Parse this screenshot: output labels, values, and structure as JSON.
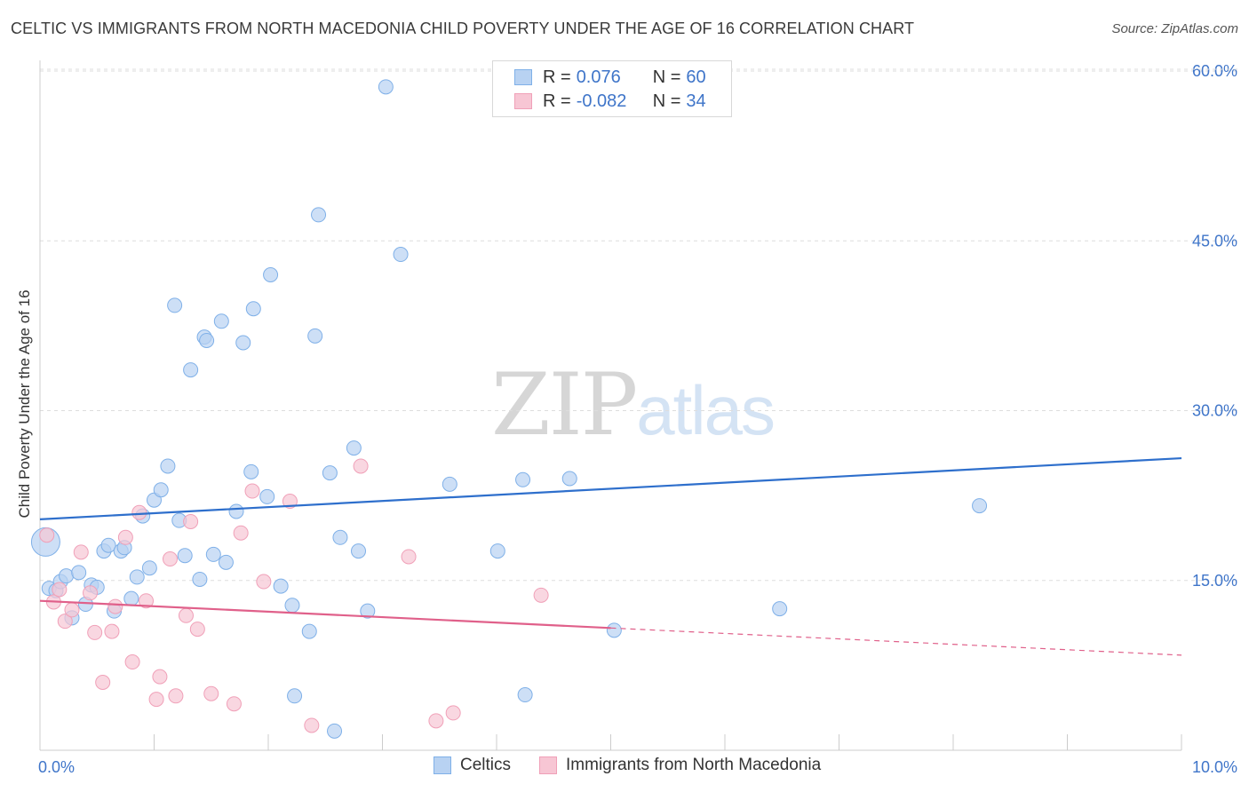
{
  "header": {
    "title": "CELTIC VS IMMIGRANTS FROM NORTH MACEDONIA CHILD POVERTY UNDER THE AGE OF 16 CORRELATION CHART",
    "source": "Source: ZipAtlas.com"
  },
  "watermark": {
    "zip": "ZIP",
    "atlas": "atlas"
  },
  "legend_top": {
    "rows": [
      {
        "r_label": "R =",
        "r_value": "0.076",
        "n_label": "N =",
        "n_value": "60",
        "color": "#7fb0e8"
      },
      {
        "r_label": "R =",
        "r_value": "-0.082",
        "n_label": "N =",
        "n_value": "34",
        "color": "#f0a0b8"
      }
    ]
  },
  "legend_bottom": {
    "items": [
      {
        "label": "Celtics",
        "color": "#7fb0e8"
      },
      {
        "label": "Immigrants from North Macedonia",
        "color": "#f0a0b8"
      }
    ]
  },
  "colors": {
    "celtics_fill": "#b8d2f2",
    "celtics_stroke": "#7fb0e8",
    "celtics_line": "#2e6fcc",
    "macedonia_fill": "#f7c6d4",
    "macedonia_stroke": "#f0a0b8",
    "macedonia_line": "#e0608a",
    "tick_text": "#3f75c9",
    "grid": "#dddddd"
  },
  "chart_data": {
    "type": "scatter",
    "title": "CELTIC VS IMMIGRANTS FROM NORTH MACEDONIA CHILD POVERTY UNDER THE AGE OF 16 CORRELATION CHART",
    "xlabel": "",
    "ylabel": "Child Poverty Under the Age of 16",
    "xlim": [
      0,
      10
    ],
    "ylim": [
      0,
      61
    ],
    "x_ticks": [
      0,
      10
    ],
    "x_tick_labels": [
      "0.0%",
      "10.0%"
    ],
    "y_ticks": [
      15,
      30,
      45,
      60
    ],
    "y_tick_labels": [
      "15.0%",
      "30.0%",
      "45.0%",
      "60.0%"
    ],
    "grid": "horizontal dashed",
    "legend": "bottom",
    "series": [
      {
        "name": "Celtics",
        "trend": {
          "x": [
            0,
            10
          ],
          "y": [
            20.4,
            25.8
          ]
        },
        "points": [
          {
            "x": 0.05,
            "y": 18.4,
            "big": true
          },
          {
            "x": 0.08,
            "y": 14.3
          },
          {
            "x": 0.14,
            "y": 14.1
          },
          {
            "x": 0.18,
            "y": 14.9
          },
          {
            "x": 0.23,
            "y": 15.4
          },
          {
            "x": 0.28,
            "y": 11.7
          },
          {
            "x": 0.34,
            "y": 15.7
          },
          {
            "x": 0.4,
            "y": 12.9
          },
          {
            "x": 0.45,
            "y": 14.6
          },
          {
            "x": 0.5,
            "y": 14.4
          },
          {
            "x": 0.56,
            "y": 17.6
          },
          {
            "x": 0.6,
            "y": 18.1
          },
          {
            "x": 0.65,
            "y": 12.3
          },
          {
            "x": 0.71,
            "y": 17.6
          },
          {
            "x": 0.74,
            "y": 17.9
          },
          {
            "x": 0.8,
            "y": 13.4
          },
          {
            "x": 0.85,
            "y": 15.3
          },
          {
            "x": 0.9,
            "y": 20.7
          },
          {
            "x": 0.96,
            "y": 16.1
          },
          {
            "x": 1.0,
            "y": 22.1
          },
          {
            "x": 1.06,
            "y": 23.0
          },
          {
            "x": 1.12,
            "y": 25.1
          },
          {
            "x": 1.18,
            "y": 39.3
          },
          {
            "x": 1.22,
            "y": 20.3
          },
          {
            "x": 1.27,
            "y": 17.2
          },
          {
            "x": 1.32,
            "y": 33.6
          },
          {
            "x": 1.4,
            "y": 15.1
          },
          {
            "x": 1.44,
            "y": 36.5
          },
          {
            "x": 1.46,
            "y": 36.2
          },
          {
            "x": 1.52,
            "y": 17.3
          },
          {
            "x": 1.59,
            "y": 37.9
          },
          {
            "x": 1.63,
            "y": 16.6
          },
          {
            "x": 1.72,
            "y": 21.1
          },
          {
            "x": 1.78,
            "y": 36.0
          },
          {
            "x": 1.85,
            "y": 24.6
          },
          {
            "x": 1.87,
            "y": 39.0
          },
          {
            "x": 2.02,
            "y": 42.0
          },
          {
            "x": 1.99,
            "y": 22.4
          },
          {
            "x": 2.11,
            "y": 14.5
          },
          {
            "x": 2.21,
            "y": 12.8
          },
          {
            "x": 2.23,
            "y": 4.8
          },
          {
            "x": 2.36,
            "y": 10.5
          },
          {
            "x": 2.41,
            "y": 36.6
          },
          {
            "x": 2.44,
            "y": 47.3
          },
          {
            "x": 2.54,
            "y": 24.5
          },
          {
            "x": 2.58,
            "y": 1.7
          },
          {
            "x": 2.63,
            "y": 18.8
          },
          {
            "x": 2.75,
            "y": 26.7
          },
          {
            "x": 2.79,
            "y": 17.6
          },
          {
            "x": 2.87,
            "y": 12.3
          },
          {
            "x": 3.03,
            "y": 58.6
          },
          {
            "x": 3.16,
            "y": 43.8
          },
          {
            "x": 3.59,
            "y": 23.5
          },
          {
            "x": 4.01,
            "y": 17.6
          },
          {
            "x": 4.23,
            "y": 23.9
          },
          {
            "x": 4.25,
            "y": 4.9
          },
          {
            "x": 4.64,
            "y": 24.0
          },
          {
            "x": 5.03,
            "y": 10.6
          },
          {
            "x": 6.48,
            "y": 12.5
          },
          {
            "x": 8.23,
            "y": 21.6
          }
        ]
      },
      {
        "name": "Immigrants from North Macedonia",
        "trend": {
          "x": [
            0,
            5
          ],
          "y": [
            13.2,
            10.8
          ]
        },
        "trend_extension": {
          "x": [
            5,
            10
          ],
          "y": [
            10.8,
            8.4
          ]
        },
        "points": [
          {
            "x": 0.06,
            "y": 19.0
          },
          {
            "x": 0.12,
            "y": 13.1
          },
          {
            "x": 0.17,
            "y": 14.2
          },
          {
            "x": 0.22,
            "y": 11.4
          },
          {
            "x": 0.28,
            "y": 12.4
          },
          {
            "x": 0.36,
            "y": 17.5
          },
          {
            "x": 0.44,
            "y": 13.9
          },
          {
            "x": 0.48,
            "y": 10.4
          },
          {
            "x": 0.55,
            "y": 6.0
          },
          {
            "x": 0.63,
            "y": 10.5
          },
          {
            "x": 0.66,
            "y": 12.7
          },
          {
            "x": 0.75,
            "y": 18.8
          },
          {
            "x": 0.81,
            "y": 7.8
          },
          {
            "x": 0.87,
            "y": 21.0
          },
          {
            "x": 0.93,
            "y": 13.2
          },
          {
            "x": 1.02,
            "y": 4.5
          },
          {
            "x": 1.05,
            "y": 6.5
          },
          {
            "x": 1.14,
            "y": 16.9
          },
          {
            "x": 1.19,
            "y": 4.8
          },
          {
            "x": 1.28,
            "y": 11.9
          },
          {
            "x": 1.32,
            "y": 20.2
          },
          {
            "x": 1.38,
            "y": 10.7
          },
          {
            "x": 1.5,
            "y": 5.0
          },
          {
            "x": 1.7,
            "y": 4.1
          },
          {
            "x": 1.76,
            "y": 19.2
          },
          {
            "x": 1.86,
            "y": 22.9
          },
          {
            "x": 1.96,
            "y": 14.9
          },
          {
            "x": 2.19,
            "y": 22.0
          },
          {
            "x": 2.38,
            "y": 2.2
          },
          {
            "x": 2.81,
            "y": 25.1
          },
          {
            "x": 3.23,
            "y": 17.1
          },
          {
            "x": 3.47,
            "y": 2.6
          },
          {
            "x": 3.62,
            "y": 3.3
          },
          {
            "x": 4.39,
            "y": 13.7
          }
        ]
      }
    ]
  }
}
